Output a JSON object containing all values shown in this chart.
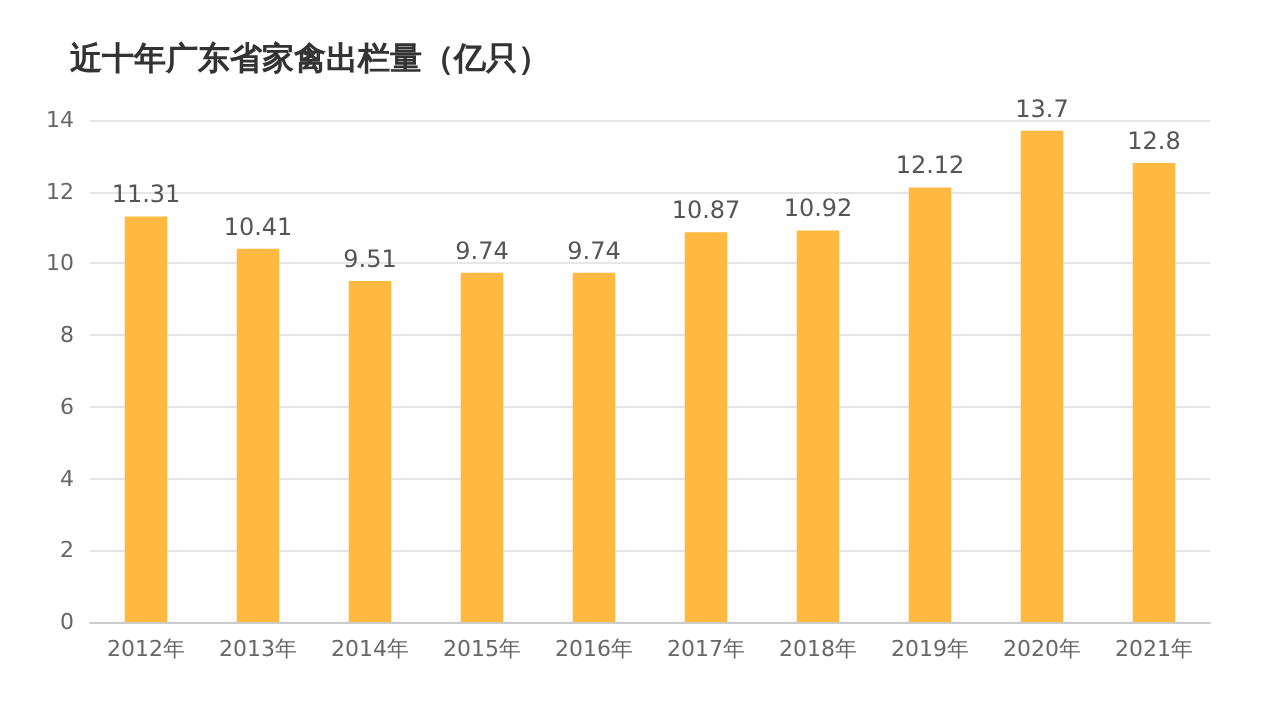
{
  "chart_data": {
    "type": "bar",
    "title": "近十年广东省家禽出栏量（亿只）",
    "categories": [
      "2012年",
      "2013年",
      "2014年",
      "2015年",
      "2016年",
      "2017年",
      "2018年",
      "2019年",
      "2020年",
      "2021年"
    ],
    "values": [
      11.31,
      10.41,
      9.51,
      9.74,
      9.74,
      10.87,
      10.92,
      12.12,
      13.7,
      12.8
    ],
    "color": "#ffb940",
    "ylim": [
      0,
      14
    ],
    "yticks": [
      0,
      2,
      4,
      6,
      8,
      10,
      12,
      14
    ],
    "grid": "y",
    "data_labels": true
  }
}
